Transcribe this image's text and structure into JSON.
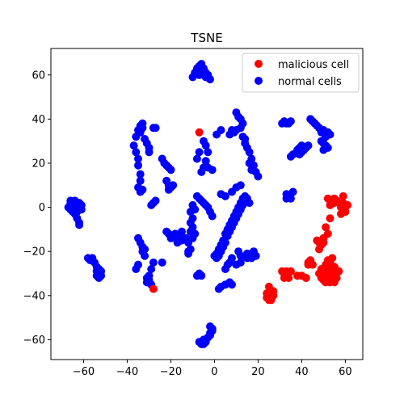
{
  "chart_data": {
    "type": "scatter",
    "title": "TSNE",
    "xlabel": "",
    "ylabel": "",
    "xlim": [
      -75,
      68
    ],
    "ylim": [
      -69,
      72
    ],
    "xticks": [
      -60,
      -40,
      -20,
      0,
      20,
      40,
      60
    ],
    "yticks": [
      -60,
      -40,
      -20,
      0,
      20,
      40,
      60
    ],
    "xtick_labels": [
      "−60",
      "−40",
      "−20",
      "0",
      "20",
      "40",
      "60"
    ],
    "ytick_labels": [
      "−60",
      "−40",
      "−20",
      "0",
      "20",
      "40",
      "60"
    ],
    "grid": false,
    "legend_position": "top-right",
    "series": [
      {
        "name": "malicious cell",
        "color": "#ff0000",
        "points": [
          [
            -28,
            -37
          ],
          [
            -7,
            34
          ],
          [
            52,
            4
          ],
          [
            53,
            3
          ],
          [
            54,
            2
          ],
          [
            55,
            4
          ],
          [
            56,
            3
          ],
          [
            53,
            1
          ],
          [
            55,
            2
          ],
          [
            58,
            0
          ],
          [
            59,
            -1
          ],
          [
            60,
            0
          ],
          [
            59,
            2
          ],
          [
            60,
            -2
          ],
          [
            58,
            -3
          ],
          [
            59,
            5
          ],
          [
            61,
            1
          ],
          [
            58,
            1
          ],
          [
            53,
            -5
          ],
          [
            51,
            -9
          ],
          [
            52,
            -12
          ],
          [
            50,
            -14
          ],
          [
            49,
            -17
          ],
          [
            48,
            -19
          ],
          [
            47,
            -15
          ],
          [
            50,
            -16
          ],
          [
            48,
            -16
          ],
          [
            43,
            -25
          ],
          [
            44,
            -24
          ],
          [
            45,
            -26
          ],
          [
            43,
            -26
          ],
          [
            52,
            -24
          ],
          [
            53,
            -25
          ],
          [
            54,
            -23
          ],
          [
            52,
            -27
          ],
          [
            50,
            -29
          ],
          [
            51,
            -30
          ],
          [
            53,
            -29
          ],
          [
            55,
            -30
          ],
          [
            49,
            -32
          ],
          [
            50,
            -33
          ],
          [
            52,
            -32
          ],
          [
            54,
            -31
          ],
          [
            56,
            -32
          ],
          [
            55,
            -34
          ],
          [
            53,
            -34
          ],
          [
            51,
            -34
          ],
          [
            48,
            -30
          ],
          [
            49,
            -28
          ],
          [
            51,
            -26
          ],
          [
            53,
            -27
          ],
          [
            57,
            -29
          ],
          [
            55,
            -27
          ],
          [
            40,
            -31
          ],
          [
            42,
            -32
          ],
          [
            38,
            -31
          ],
          [
            31,
            -29
          ],
          [
            32,
            -30
          ],
          [
            33,
            -31
          ],
          [
            34,
            -30
          ],
          [
            35,
            -29
          ],
          [
            32,
            -32
          ],
          [
            34,
            -32
          ],
          [
            33,
            -29
          ],
          [
            25,
            -36
          ],
          [
            24,
            -39
          ],
          [
            25,
            -40
          ],
          [
            26,
            -41
          ],
          [
            27,
            -40
          ],
          [
            26,
            -42
          ],
          [
            25,
            -42
          ],
          [
            24,
            -41
          ],
          [
            27,
            -38
          ]
        ]
      },
      {
        "name": "normal cells",
        "color": "#0000ff",
        "points": [
          [
            -66,
            2
          ],
          [
            -65,
            1
          ],
          [
            -64,
            0
          ],
          [
            -66,
            -1
          ],
          [
            -67,
            0
          ],
          [
            -65,
            -2
          ],
          [
            -63,
            1
          ],
          [
            -64,
            3
          ],
          [
            -62,
            0
          ],
          [
            -63,
            -2
          ],
          [
            -61,
            1
          ],
          [
            -62,
            2
          ],
          [
            -64,
            -3
          ],
          [
            -66,
            3
          ],
          [
            -61,
            -1
          ],
          [
            -63,
            -5
          ],
          [
            -62,
            -7
          ],
          [
            -62,
            -8
          ],
          [
            -58,
            -23
          ],
          [
            -57,
            -24
          ],
          [
            -56,
            -23
          ],
          [
            -55,
            -25
          ],
          [
            -54,
            -27
          ],
          [
            -53,
            -28
          ],
          [
            -54,
            -29
          ],
          [
            -53,
            -30
          ],
          [
            -52,
            -31
          ],
          [
            -53,
            -32
          ],
          [
            -52,
            -29
          ],
          [
            -54,
            -31
          ],
          [
            -36,
            32
          ],
          [
            -35,
            35
          ],
          [
            -34,
            37
          ],
          [
            -33,
            38
          ],
          [
            -34,
            34
          ],
          [
            -33,
            36
          ],
          [
            -28,
            36
          ],
          [
            -27,
            36
          ],
          [
            -32,
            31
          ],
          [
            -31,
            29
          ],
          [
            -30,
            27
          ],
          [
            -30,
            25
          ],
          [
            -37,
            28
          ],
          [
            -36,
            25
          ],
          [
            -35,
            22
          ],
          [
            -35,
            19
          ],
          [
            -34,
            15
          ],
          [
            -34,
            12
          ],
          [
            -35,
            9
          ],
          [
            -34,
            7
          ],
          [
            -33,
            8
          ],
          [
            -24,
            22
          ],
          [
            -23,
            20
          ],
          [
            -22,
            19
          ],
          [
            -21,
            18
          ],
          [
            -20,
            17
          ],
          [
            -22,
            12
          ],
          [
            -21,
            10
          ],
          [
            -20,
            9
          ],
          [
            -21,
            8
          ],
          [
            -19,
            10
          ],
          [
            -27,
            3
          ],
          [
            -28,
            2
          ],
          [
            -29,
            1
          ],
          [
            -35,
            -14
          ],
          [
            -34,
            -16
          ],
          [
            -33,
            -18
          ],
          [
            -32,
            -19
          ],
          [
            -33,
            -20
          ],
          [
            -32,
            -22
          ],
          [
            -28,
            -25
          ],
          [
            -29,
            -28
          ],
          [
            -30,
            -31
          ],
          [
            -31,
            -32
          ],
          [
            -30,
            -33
          ],
          [
            -31,
            -34
          ],
          [
            -29,
            -35
          ],
          [
            -35,
            -26
          ],
          [
            -36,
            -28
          ],
          [
            -24,
            -25
          ],
          [
            -22,
            -11
          ],
          [
            -21,
            -12
          ],
          [
            -20,
            -14
          ],
          [
            -19,
            -13
          ],
          [
            -18,
            -12
          ],
          [
            -17,
            -14
          ],
          [
            -16,
            -12
          ],
          [
            -15,
            -11
          ],
          [
            -17,
            -16
          ],
          [
            -15,
            -15
          ],
          [
            -13,
            -14
          ],
          [
            -12,
            -16
          ],
          [
            -12,
            -20
          ],
          [
            -11,
            -19
          ],
          [
            -12,
            -21
          ],
          [
            -10,
            -5
          ],
          [
            -11,
            -7
          ],
          [
            -10,
            -9
          ],
          [
            -11,
            -11
          ],
          [
            -10,
            -14
          ],
          [
            -9,
            -12
          ],
          [
            -8,
            5
          ],
          [
            -7,
            4
          ],
          [
            -6,
            3
          ],
          [
            -5,
            2
          ],
          [
            -4,
            1
          ],
          [
            -3,
            0
          ],
          [
            -2,
            -2
          ],
          [
            -1,
            -4
          ],
          [
            -10,
            1
          ],
          [
            -11,
            -2
          ],
          [
            -9,
            -1
          ],
          [
            -6,
            16
          ],
          [
            -5,
            18
          ],
          [
            -4,
            21
          ],
          [
            -3,
            25
          ],
          [
            -4,
            28
          ],
          [
            -5,
            30
          ],
          [
            -7,
            25
          ],
          [
            -8,
            22
          ],
          [
            -3,
            18
          ],
          [
            -1,
            17
          ],
          [
            1,
            33
          ],
          [
            3,
            35
          ],
          [
            -8,
            -31
          ],
          [
            -7,
            -30
          ],
          [
            -6,
            -31
          ],
          [
            -10,
            59
          ],
          [
            -9,
            61
          ],
          [
            -8,
            63
          ],
          [
            -7,
            64
          ],
          [
            -6,
            65
          ],
          [
            -5,
            63
          ],
          [
            -4,
            61
          ],
          [
            -5,
            60
          ],
          [
            -4,
            59
          ],
          [
            -7,
            60
          ],
          [
            -3,
            60
          ],
          [
            -2,
            58
          ],
          [
            -6,
            62
          ],
          [
            0,
            -22
          ],
          [
            1,
            -21
          ],
          [
            2,
            -19
          ],
          [
            3,
            -17
          ],
          [
            4,
            -15
          ],
          [
            5,
            -12
          ],
          [
            6,
            -10
          ],
          [
            7,
            -8
          ],
          [
            8,
            -6
          ],
          [
            9,
            -4
          ],
          [
            10,
            -2
          ],
          [
            11,
            0
          ],
          [
            12,
            2
          ],
          [
            13,
            4
          ],
          [
            14,
            5
          ],
          [
            15,
            4
          ],
          [
            16,
            2
          ],
          [
            1,
            -23
          ],
          [
            2,
            -22
          ],
          [
            3,
            -20
          ],
          [
            4,
            -18
          ],
          [
            5,
            -16
          ],
          [
            6,
            -13
          ],
          [
            7,
            -11
          ],
          [
            8,
            -9
          ],
          [
            9,
            -7
          ],
          [
            10,
            -5
          ],
          [
            11,
            -3
          ],
          [
            12,
            -1
          ],
          [
            13,
            1
          ],
          [
            14,
            3
          ],
          [
            3,
            6
          ],
          [
            5,
            5
          ],
          [
            8,
            7
          ],
          [
            10,
            9
          ],
          [
            12,
            10
          ],
          [
            5,
            -28
          ],
          [
            6,
            -26
          ],
          [
            7,
            -25
          ],
          [
            8,
            -23
          ],
          [
            2,
            -37
          ],
          [
            3,
            -36
          ],
          [
            5,
            -35
          ],
          [
            7,
            -34
          ],
          [
            8,
            -35
          ],
          [
            10,
            -26
          ],
          [
            12,
            -25
          ],
          [
            15,
            -21
          ],
          [
            16,
            -22
          ],
          [
            17,
            -21
          ],
          [
            18,
            -20
          ],
          [
            19,
            -22
          ],
          [
            17,
            -23
          ],
          [
            15,
            -23
          ],
          [
            11,
            -20
          ],
          [
            12,
            -22
          ],
          [
            14,
            29
          ],
          [
            15,
            27
          ],
          [
            16,
            25
          ],
          [
            17,
            22
          ],
          [
            18,
            19
          ],
          [
            19,
            16
          ],
          [
            20,
            14
          ],
          [
            17,
            17
          ],
          [
            16,
            20
          ],
          [
            10,
            43
          ],
          [
            11,
            41
          ],
          [
            12,
            40
          ],
          [
            13,
            38
          ],
          [
            12,
            36
          ],
          [
            10,
            35
          ],
          [
            8,
            35
          ],
          [
            7,
            33
          ],
          [
            9,
            34
          ],
          [
            13,
            32
          ],
          [
            14,
            31
          ],
          [
            -2,
            -54
          ],
          [
            -1,
            -56
          ],
          [
            -2,
            -58
          ],
          [
            -3,
            -59
          ],
          [
            -4,
            -61
          ],
          [
            -5,
            -60
          ],
          [
            -6,
            -62
          ],
          [
            -7,
            -61
          ],
          [
            -1,
            -55
          ],
          [
            -2,
            -57
          ],
          [
            -5,
            -62
          ],
          [
            31,
            38
          ],
          [
            32,
            39
          ],
          [
            33,
            38
          ],
          [
            34,
            38
          ],
          [
            35,
            39
          ],
          [
            44,
            40
          ],
          [
            45,
            39
          ],
          [
            46,
            38
          ],
          [
            47,
            37
          ],
          [
            48,
            36
          ],
          [
            49,
            34
          ],
          [
            50,
            35
          ],
          [
            52,
            34
          ],
          [
            53,
            33
          ],
          [
            51,
            32
          ],
          [
            49,
            30
          ],
          [
            50,
            29
          ],
          [
            51,
            28
          ],
          [
            52,
            27
          ],
          [
            38,
            26
          ],
          [
            39,
            27
          ],
          [
            40,
            25
          ],
          [
            41,
            26
          ],
          [
            42,
            27
          ],
          [
            43,
            28
          ],
          [
            40,
            28
          ],
          [
            39,
            24
          ],
          [
            35,
            23
          ],
          [
            36,
            24
          ],
          [
            50,
            26
          ],
          [
            33,
            6
          ],
          [
            34,
            5
          ],
          [
            35,
            6
          ],
          [
            36,
            7
          ],
          [
            33,
            4
          ],
          [
            35,
            4
          ]
        ]
      }
    ]
  }
}
